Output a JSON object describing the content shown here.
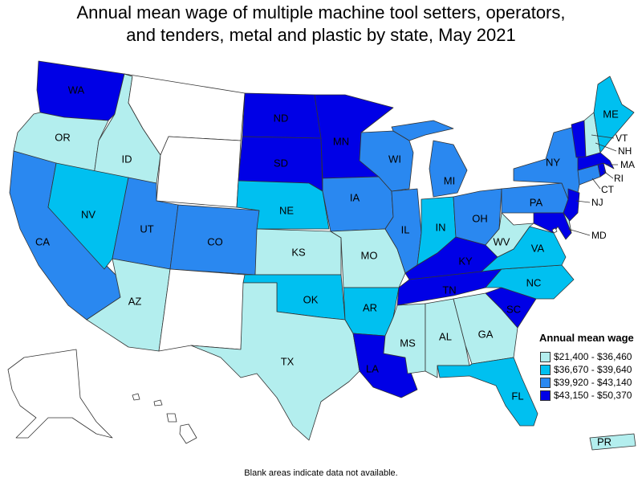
{
  "title_lines": [
    "Annual mean wage of multiple machine tool setters, operators,",
    "and tenders, metal and plastic by state, May 2021"
  ],
  "colors": {
    "q1": "#b3eeee",
    "q2": "#00c0f0",
    "q3": "#2a88f0",
    "q4": "#0000e6",
    "na": "#ffffff"
  },
  "legend": {
    "title": "Annual mean wage",
    "items": [
      {
        "label": "$21,400 - $36,460",
        "color_key": "q1"
      },
      {
        "label": "$36,670 - $39,640",
        "color_key": "q2"
      },
      {
        "label": "$39,920 - $43,140",
        "color_key": "q3"
      },
      {
        "label": "$43,150 - $50,370",
        "color_key": "q4"
      }
    ]
  },
  "footnote": "Blank areas indicate data not available.",
  "chart_data": {
    "type": "choropleth",
    "title": "Annual mean wage of multiple machine tool setters, operators, and tenders, metal and plastic by state, May 2021",
    "bins": [
      "$21,400 - $36,460",
      "$36,670 - $39,640",
      "$39,920 - $43,140",
      "$43,150 - $50,370"
    ],
    "states": {
      "WA": "q4",
      "OR": "q1",
      "CA": "q3",
      "ID": "q1",
      "NV": "q2",
      "MT": "na",
      "WY": "na",
      "UT": "q3",
      "AZ": "q1",
      "CO": "q3",
      "NM": "na",
      "ND": "q4",
      "SD": "q4",
      "NE": "q2",
      "KS": "q1",
      "OK": "q2",
      "TX": "q1",
      "MN": "q4",
      "IA": "q3",
      "MO": "q1",
      "AR": "q2",
      "LA": "q4",
      "WI": "q3",
      "IL": "q3",
      "MI": "q3",
      "IN": "q2",
      "OH": "q3",
      "KY": "q4",
      "TN": "q4",
      "MS": "q1",
      "AL": "q1",
      "GA": "q1",
      "FL": "q2",
      "SC": "q4",
      "NC": "q2",
      "VA": "q2",
      "WV": "q1",
      "PA": "q3",
      "NY": "q3",
      "VT": "q4",
      "NH": "q1",
      "ME": "q2",
      "MA": "q4",
      "RI": "q4",
      "CT": "q3",
      "NJ": "q4",
      "DE": "q1",
      "MD": "q4",
      "DC": "na",
      "AK": "na",
      "HI": "na",
      "PR": "q1"
    }
  }
}
